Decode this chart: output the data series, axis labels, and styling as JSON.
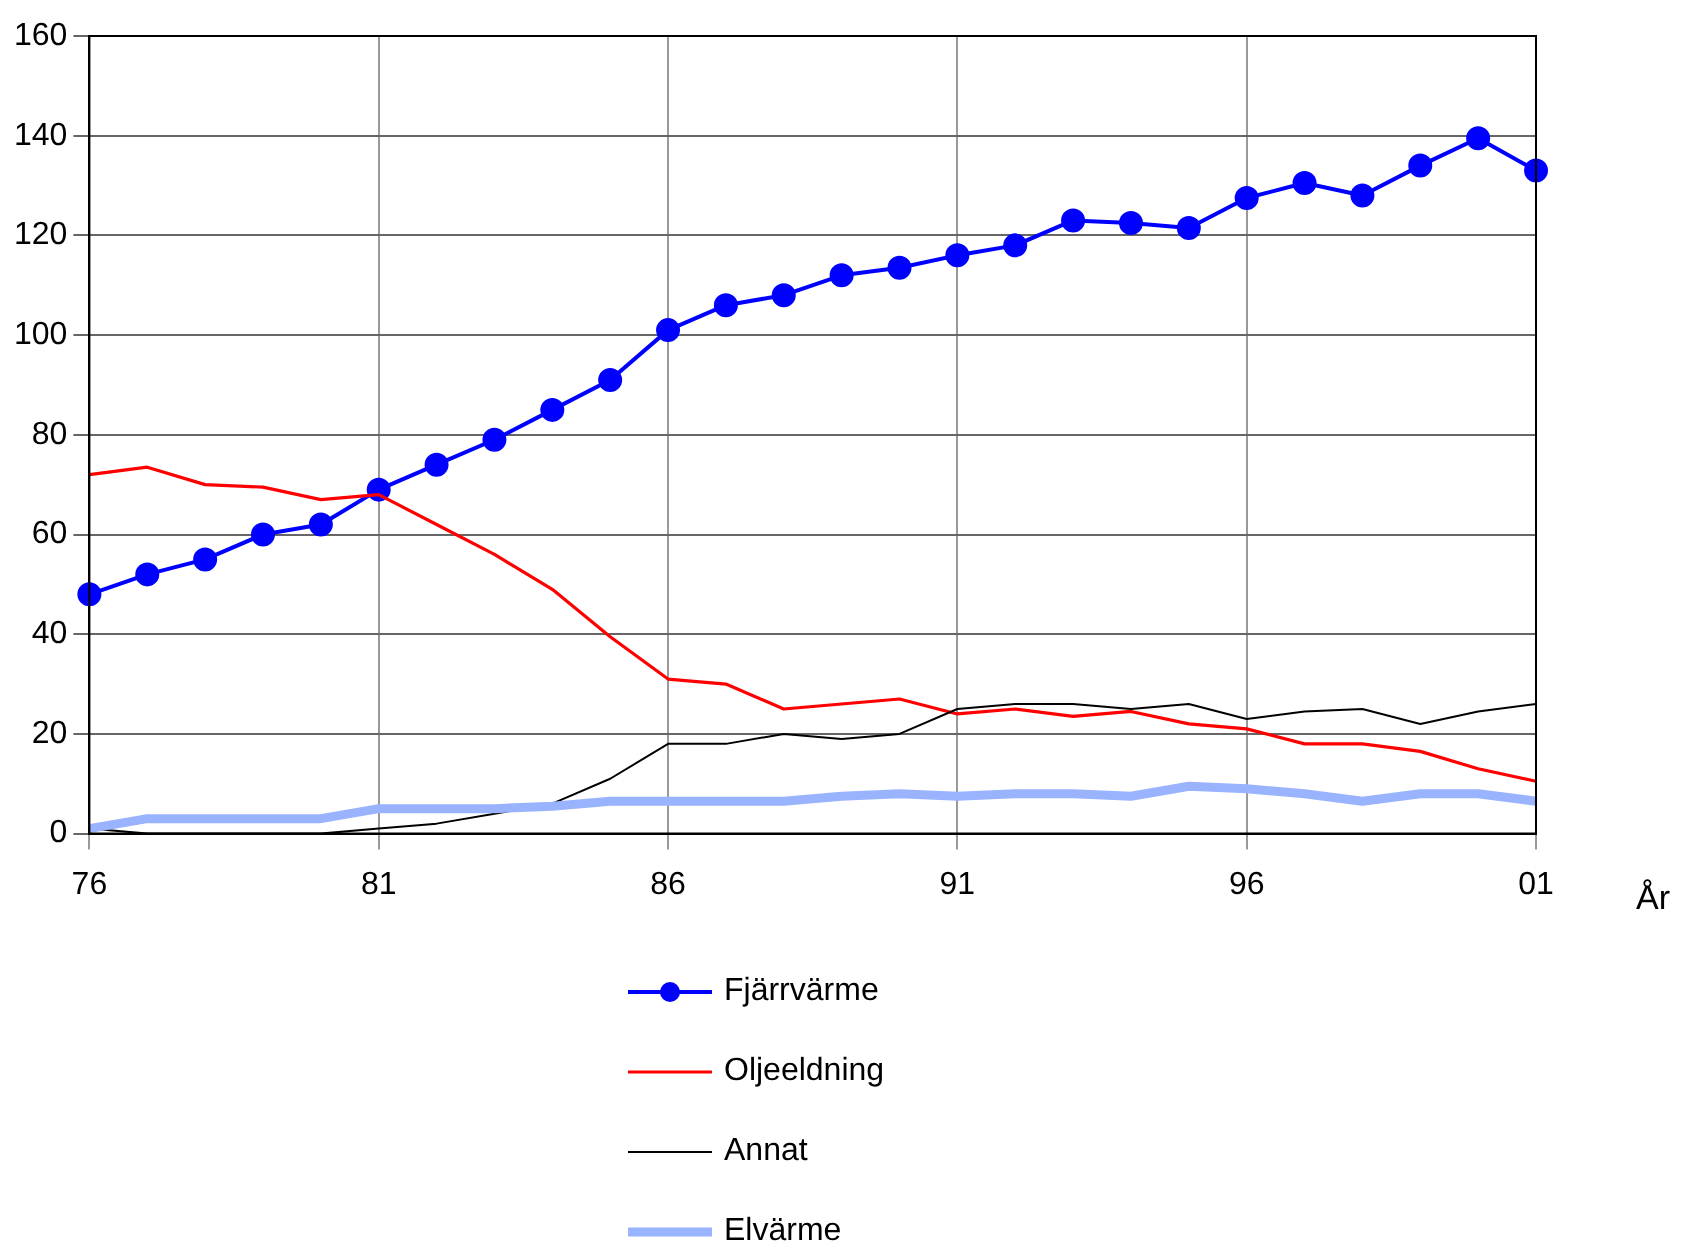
{
  "chart_data": {
    "type": "line",
    "xlabel": "År",
    "categories": [
      "76",
      null,
      null,
      null,
      null,
      "81",
      null,
      null,
      null,
      null,
      "86",
      null,
      null,
      null,
      null,
      "91",
      null,
      null,
      null,
      null,
      "96",
      null,
      null,
      null,
      null,
      "01"
    ],
    "series": [
      {
        "name": "Fjärrvärme",
        "color": "#0000ff",
        "marker": "circle",
        "values": [
          48,
          52,
          55,
          60,
          62,
          69,
          74,
          79,
          85,
          91,
          101,
          106,
          108,
          112,
          113.5,
          116,
          118,
          123,
          122.5,
          121.5,
          127.5,
          130.5,
          128,
          134,
          139.5,
          133
        ]
      },
      {
        "name": "Oljeeldning",
        "color": "#ff0000",
        "marker": "none",
        "values": [
          72,
          73.5,
          70,
          69.5,
          67,
          68,
          62,
          56,
          49,
          39.5,
          31,
          30,
          25,
          26,
          27,
          24,
          25,
          23.5,
          24.5,
          22,
          21,
          18,
          18,
          16.5,
          13,
          10.5
        ]
      },
      {
        "name": "Annat",
        "color": "#000000",
        "marker": "none",
        "values": [
          1,
          0,
          0,
          0,
          0,
          1,
          2,
          4,
          6,
          11,
          18,
          18,
          20,
          19,
          20,
          25,
          26,
          26,
          25,
          26,
          23,
          24.5,
          25,
          22,
          24.5,
          26
        ]
      },
      {
        "name": "Elvärme",
        "color": "#99b3ff",
        "marker": "none",
        "values": [
          1,
          3,
          3,
          3,
          3,
          5,
          5,
          5,
          5.5,
          6.5,
          6.5,
          6.5,
          6.5,
          7.5,
          8,
          7.5,
          8,
          8,
          7.5,
          9.5,
          9,
          8,
          6.5,
          8,
          8,
          6.5
        ]
      }
    ],
    "ylim": [
      0,
      160
    ],
    "yticks": [
      0,
      20,
      40,
      60,
      80,
      100,
      120,
      140,
      160
    ],
    "grid": true,
    "legend": "bottom",
    "line_style": "solid"
  }
}
